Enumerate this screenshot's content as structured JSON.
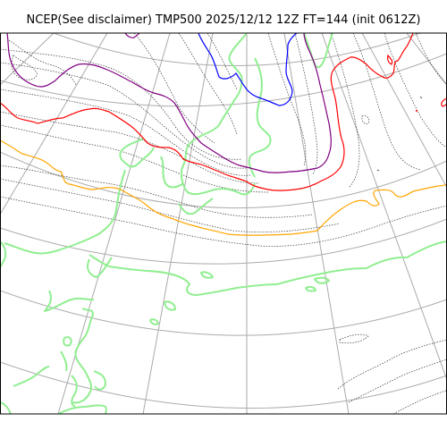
{
  "title": "NCEP(See disclaimer) TMP500 2025/12/12 12Z FT=144 (init 0612Z)",
  "map": {
    "projection": "polar-stereographic",
    "graticule": "on",
    "colors": {
      "frame": "#000000",
      "graticule": "#aaaaaa",
      "coastline": "#90ee90",
      "isotherm_minor": "#333333",
      "contour_orange": "#ffa500",
      "contour_red": "#ff0000",
      "contour_purple": "#800080",
      "contour_blue": "#0000ff"
    },
    "layers": [
      {
        "name": "coastline",
        "color": "coastline"
      },
      {
        "name": "isotherms",
        "color": "isotherm_minor"
      },
      {
        "name": "orange-contour",
        "color": "contour_orange"
      },
      {
        "name": "red-contour",
        "color": "contour_red"
      },
      {
        "name": "purple-contour",
        "color": "contour_purple"
      },
      {
        "name": "blue-contour",
        "color": "contour_blue"
      }
    ]
  }
}
